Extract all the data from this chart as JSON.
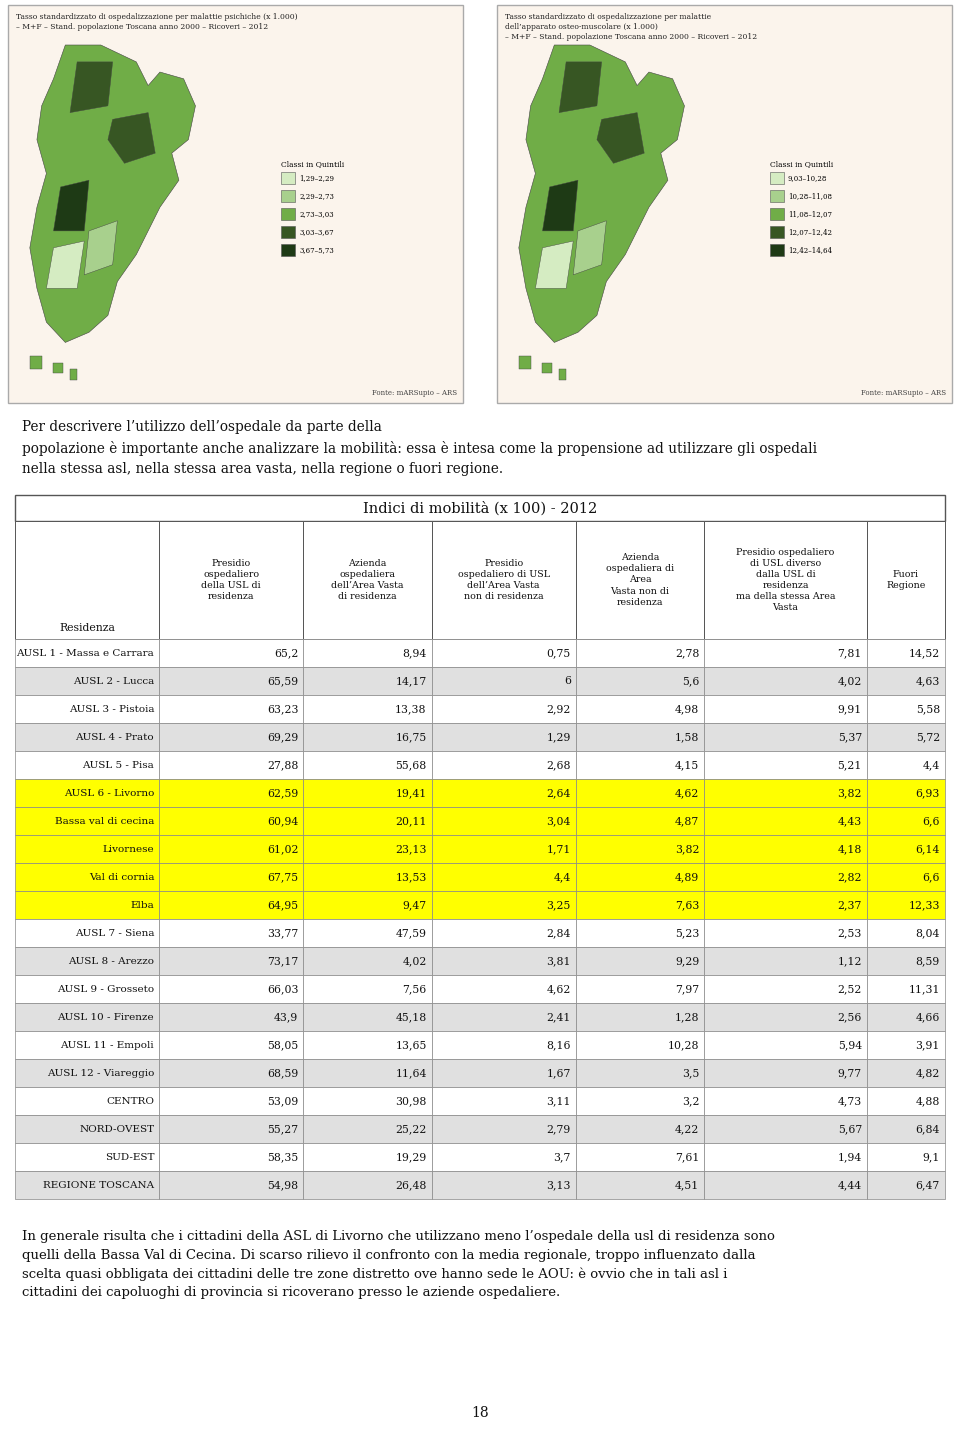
{
  "title": "Indici di mobilità (x 100) - 2012",
  "col_headers": [
    "Presidio\nospedaliero\ndella USL di\nresidenza",
    "Azienda\nospedaliera\ndell’Area Vasta\ndi residenza",
    "Presidio\nospedaliero di USL\ndell’Area Vasta\nnon di residenza",
    "Azienda\nospedaliera di\nArea\nVasta non di\nresidenza",
    "Presidio ospedaliero\ndi USL diverso\ndalla USL di\nresidenza\nma della stessa Area\nVasta",
    "Fuori\nRegione"
  ],
  "row_label_header": "Residenza",
  "rows": [
    {
      "label": "AUSL 1 - Massa e Carrara",
      "values": [
        "65,2",
        "8,94",
        "0,75",
        "2,78",
        "7,81",
        "14,52"
      ],
      "highlight": false
    },
    {
      "label": "AUSL 2 - Lucca",
      "values": [
        "65,59",
        "14,17",
        "6",
        "5,6",
        "4,02",
        "4,63"
      ],
      "highlight": false
    },
    {
      "label": "AUSL 3 - Pistoia",
      "values": [
        "63,23",
        "13,38",
        "2,92",
        "4,98",
        "9,91",
        "5,58"
      ],
      "highlight": false
    },
    {
      "label": "AUSL 4 - Prato",
      "values": [
        "69,29",
        "16,75",
        "1,29",
        "1,58",
        "5,37",
        "5,72"
      ],
      "highlight": false
    },
    {
      "label": "AUSL 5 - Pisa",
      "values": [
        "27,88",
        "55,68",
        "2,68",
        "4,15",
        "5,21",
        "4,4"
      ],
      "highlight": false
    },
    {
      "label": "AUSL 6 - Livorno",
      "values": [
        "62,59",
        "19,41",
        "2,64",
        "4,62",
        "3,82",
        "6,93"
      ],
      "highlight": true
    },
    {
      "label": "Bassa val di cecina",
      "values": [
        "60,94",
        "20,11",
        "3,04",
        "4,87",
        "4,43",
        "6,6"
      ],
      "highlight": true
    },
    {
      "label": "Livornese",
      "values": [
        "61,02",
        "23,13",
        "1,71",
        "3,82",
        "4,18",
        "6,14"
      ],
      "highlight": true
    },
    {
      "label": "Val di cornia",
      "values": [
        "67,75",
        "13,53",
        "4,4",
        "4,89",
        "2,82",
        "6,6"
      ],
      "highlight": true
    },
    {
      "label": "Elba",
      "values": [
        "64,95",
        "9,47",
        "3,25",
        "7,63",
        "2,37",
        "12,33"
      ],
      "highlight": true
    },
    {
      "label": "AUSL 7 - Siena",
      "values": [
        "33,77",
        "47,59",
        "2,84",
        "5,23",
        "2,53",
        "8,04"
      ],
      "highlight": false
    },
    {
      "label": "AUSL 8 - Arezzo",
      "values": [
        "73,17",
        "4,02",
        "3,81",
        "9,29",
        "1,12",
        "8,59"
      ],
      "highlight": false
    },
    {
      "label": "AUSL 9 - Grosseto",
      "values": [
        "66,03",
        "7,56",
        "4,62",
        "7,97",
        "2,52",
        "11,31"
      ],
      "highlight": false
    },
    {
      "label": "AUSL 10 - Firenze",
      "values": [
        "43,9",
        "45,18",
        "2,41",
        "1,28",
        "2,56",
        "4,66"
      ],
      "highlight": false
    },
    {
      "label": "AUSL 11 - Empoli",
      "values": [
        "58,05",
        "13,65",
        "8,16",
        "10,28",
        "5,94",
        "3,91"
      ],
      "highlight": false
    },
    {
      "label": "AUSL 12 - Viareggio",
      "values": [
        "68,59",
        "11,64",
        "1,67",
        "3,5",
        "9,77",
        "4,82"
      ],
      "highlight": false
    },
    {
      "label": "CENTRO",
      "values": [
        "53,09",
        "30,98",
        "3,11",
        "3,2",
        "4,73",
        "4,88"
      ],
      "highlight": false
    },
    {
      "label": "NORD-OVEST",
      "values": [
        "55,27",
        "25,22",
        "2,79",
        "4,22",
        "5,67",
        "6,84"
      ],
      "highlight": false
    },
    {
      "label": "SUD-EST",
      "values": [
        "58,35",
        "19,29",
        "3,7",
        "7,61",
        "1,94",
        "9,1"
      ],
      "highlight": false
    },
    {
      "label": "REGIONE TOSCANA",
      "values": [
        "54,98",
        "26,48",
        "3,13",
        "4,51",
        "4,44",
        "6,47"
      ],
      "highlight": false
    }
  ],
  "map1_title": "Tasso standardizzato di ospedalizzazione per malattie psichiche (x 1.000)\n– M+F – Stand. popolazione Toscana anno 2000 – Ricoveri – 2012",
  "map2_title": "Tasso standardizzato di ospedalizzazione per malattie\ndell’apparato osteo-muscolare (x 1.000)\n– M+F – Stand. popolazione Toscana anno 2000 – Ricoveri – 2012",
  "map1_legend_labels": [
    "1,29–2,29",
    "2,29–2,73",
    "2,73–3,03",
    "3,03–3,67",
    "3,67–5,73"
  ],
  "map2_legend_labels": [
    "9,03–10,28",
    "10,28–11,08",
    "11,08–12,07",
    "12,07–12,42",
    "12,42–14,64"
  ],
  "legend_colors": [
    "#d5ecc2",
    "#a8d08d",
    "#70ad47",
    "#375623",
    "#1e3a15"
  ],
  "fonte_text": "Fonte: mARSupio – ARS",
  "intro_text": "Per descrivere l’utilizzo dell’ospedale da parte della\npopolazione è importante anche analizzare la mobilità: essa è intesa come la propensione ad utilizzare gli ospedali\nnella stessa asl, nella stessa area vasta, nella regione o fuori regione.",
  "footer_text": "In generale risulta che i cittadini della ASL di Livorno che utilizzano meno l’ospedale della usl di residenza sono\nquelli della Bassa Val di Cecina. Di scarso rilievo il confronto con la media regionale, troppo influenzato dalla\nscelta quasi obbligata dei cittadini delle tre zone distretto ove hanno sede le AOU: è ovvio che in tali asl i\ncittadini dei capoluoghi di provincia si ricoverano presso le aziende ospedaliere.",
  "page_number": "18",
  "highlight_color": "#FFFF00",
  "alt_row_color": "#E0E0E0",
  "white_row_color": "#FFFFFF",
  "map_box_bg": "#FBF4EC",
  "page_bg": "#FFFFFF"
}
